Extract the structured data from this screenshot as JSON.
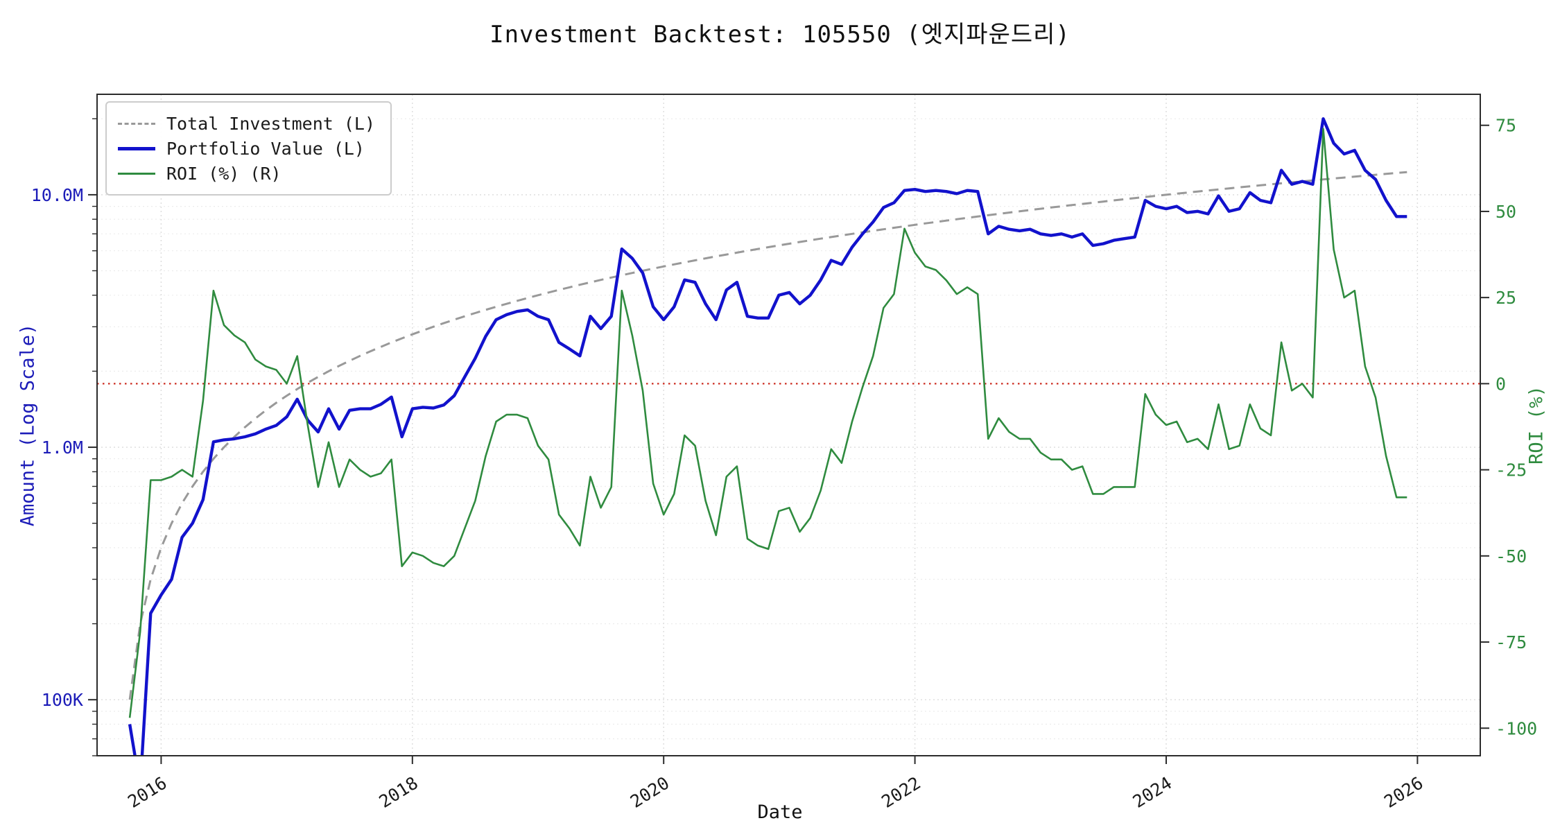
{
  "colors": {
    "investment": "#999999",
    "portfolio": "#1212cc",
    "roi": "#2f8b3f",
    "zero_line": "#cc2a1e",
    "left_axis_text": "#1c1cb8",
    "right_axis_text": "#2f8b3f",
    "spine": "#2b2b2b",
    "grid_major": "#dcdcdc",
    "grid_minor": "#ececec",
    "background": "#ffffff"
  },
  "legend": {
    "items": [
      {
        "label": "Total Investment (L)",
        "style": "dashed"
      },
      {
        "label": "Portfolio Value (L)",
        "style": "solid-thick"
      },
      {
        "label": "ROI (%) (R)",
        "style": "solid"
      }
    ]
  },
  "chart_data": {
    "type": "line",
    "title": "Investment Backtest: 105550 (엣지파운드리)",
    "xlabel": "Date",
    "ylabel_left": "Amount (Log Scale)",
    "ylabel_right": "ROI (%)",
    "legend_position": "upper-left",
    "grid": true,
    "x_range": [
      2015.49,
      2026.5
    ],
    "x_ticks": {
      "values": [
        2016,
        2018,
        2020,
        2022,
        2024,
        2026
      ],
      "labels": [
        "2016",
        "2018",
        "2020",
        "2022",
        "2024",
        "2026"
      ]
    },
    "y_left": {
      "scale": "log",
      "unit": "amount",
      "range": [
        0.06,
        25
      ],
      "tick_values": [
        0.1,
        1,
        10
      ],
      "tick_labels": [
        "100K",
        "1.0M",
        "10.0M"
      ],
      "minor_grid": [
        0.06,
        0.07,
        0.08,
        0.09,
        0.2,
        0.3,
        0.4,
        0.5,
        0.6,
        0.7,
        0.8,
        0.9,
        2,
        3,
        4,
        5,
        6,
        7,
        8,
        9,
        20
      ]
    },
    "y_right": {
      "scale": "linear",
      "unit": "%",
      "range": [
        -108,
        84
      ],
      "tick_values": [
        -100,
        -75,
        -50,
        -25,
        0,
        25,
        50,
        75
      ],
      "tick_labels": [
        "-100",
        "-75",
        "-50",
        "-25",
        "0",
        "25",
        "50",
        "75"
      ],
      "zero_line": 0
    },
    "months": [
      "2015-10",
      "2015-11",
      "2015-12",
      "2016-01",
      "2016-02",
      "2016-03",
      "2016-04",
      "2016-05",
      "2016-06",
      "2016-07",
      "2016-08",
      "2016-09",
      "2016-10",
      "2016-11",
      "2016-12",
      "2017-01",
      "2017-02",
      "2017-03",
      "2017-04",
      "2017-05",
      "2017-06",
      "2017-07",
      "2017-08",
      "2017-09",
      "2017-10",
      "2017-11",
      "2017-12",
      "2018-01",
      "2018-02",
      "2018-03",
      "2018-04",
      "2018-05",
      "2018-06",
      "2018-07",
      "2018-08",
      "2018-09",
      "2018-10",
      "2018-11",
      "2018-12",
      "2019-01",
      "2019-02",
      "2019-03",
      "2019-04",
      "2019-05",
      "2019-06",
      "2019-07",
      "2019-08",
      "2019-09",
      "2019-10",
      "2019-11",
      "2019-12",
      "2020-01",
      "2020-02",
      "2020-03",
      "2020-04",
      "2020-05",
      "2020-06",
      "2020-07",
      "2020-08",
      "2020-09",
      "2020-10",
      "2020-11",
      "2020-12",
      "2021-01",
      "2021-02",
      "2021-03",
      "2021-04",
      "2021-05",
      "2021-06",
      "2021-07",
      "2021-08",
      "2021-09",
      "2021-10",
      "2021-11",
      "2021-12",
      "2022-01",
      "2022-02",
      "2022-03",
      "2022-04",
      "2022-05",
      "2022-06",
      "2022-07",
      "2022-08",
      "2022-09",
      "2022-10",
      "2022-11",
      "2022-12",
      "2023-01",
      "2023-02",
      "2023-03",
      "2023-04",
      "2023-05",
      "2023-06",
      "2023-07",
      "2023-08",
      "2023-09",
      "2023-10",
      "2023-11",
      "2023-12",
      "2024-01",
      "2024-02",
      "2024-03",
      "2024-04",
      "2024-05",
      "2024-06",
      "2024-07",
      "2024-08",
      "2024-09",
      "2024-10",
      "2024-11",
      "2024-12",
      "2025-01",
      "2025-02",
      "2025-03",
      "2025-04",
      "2025-05",
      "2025-06",
      "2025-07",
      "2025-08",
      "2025-09",
      "2025-10",
      "2025-11",
      "2025-12"
    ],
    "series": [
      {
        "name": "Total Investment (L)",
        "axis": "left",
        "style": "dashed",
        "color": "#999999",
        "unit": "millions",
        "values": [
          0.1,
          0.2,
          0.3,
          0.4,
          0.5,
          0.6,
          0.7,
          0.8,
          0.9,
          1.0,
          1.1,
          1.2,
          1.3,
          1.4,
          1.5,
          1.6,
          1.7,
          1.8,
          1.9,
          2.0,
          2.1,
          2.2,
          2.3,
          2.4,
          2.5,
          2.6,
          2.7,
          2.8,
          2.9,
          3.0,
          3.1,
          3.2,
          3.3,
          3.4,
          3.5,
          3.6,
          3.7,
          3.8,
          3.9,
          4.0,
          4.1,
          4.2,
          4.3,
          4.4,
          4.5,
          4.6,
          4.7,
          4.8,
          4.9,
          5.0,
          5.1,
          5.2,
          5.3,
          5.4,
          5.5,
          5.6,
          5.7,
          5.8,
          5.9,
          6.0,
          6.1,
          6.2,
          6.3,
          6.4,
          6.5,
          6.6,
          6.7,
          6.8,
          6.9,
          7.0,
          7.1,
          7.2,
          7.3,
          7.4,
          7.5,
          7.6,
          7.7,
          7.8,
          7.9,
          8.0,
          8.1,
          8.2,
          8.3,
          8.4,
          8.5,
          8.6,
          8.7,
          8.8,
          8.9,
          9.0,
          9.1,
          9.2,
          9.3,
          9.4,
          9.5,
          9.6,
          9.7,
          9.8,
          9.9,
          10.0,
          10.1,
          10.2,
          10.3,
          10.4,
          10.5,
          10.6,
          10.7,
          10.8,
          10.9,
          11.0,
          11.1,
          11.2,
          11.3,
          11.4,
          11.5,
          11.6,
          11.7,
          11.8,
          11.9,
          12.0,
          12.1,
          12.2,
          12.3
        ]
      },
      {
        "name": "Portfolio Value (L)",
        "axis": "left",
        "style": "solid",
        "color": "#1212cc",
        "unit": "millions",
        "values": [
          0.08,
          0.045,
          0.22,
          0.26,
          0.3,
          0.44,
          0.5,
          0.62,
          1.05,
          1.07,
          1.08,
          1.1,
          1.13,
          1.18,
          1.22,
          1.32,
          1.55,
          1.28,
          1.15,
          1.42,
          1.18,
          1.4,
          1.42,
          1.42,
          1.48,
          1.58,
          1.1,
          1.42,
          1.44,
          1.43,
          1.47,
          1.6,
          1.9,
          2.25,
          2.75,
          3.2,
          3.35,
          3.45,
          3.5,
          3.3,
          3.2,
          2.6,
          2.45,
          2.3,
          3.3,
          2.95,
          3.3,
          6.1,
          5.6,
          4.9,
          3.6,
          3.2,
          3.6,
          4.6,
          4.5,
          3.7,
          3.2,
          4.2,
          4.5,
          3.3,
          3.25,
          3.25,
          4.0,
          4.1,
          3.7,
          4.0,
          4.6,
          5.5,
          5.3,
          6.2,
          7.0,
          7.8,
          8.9,
          9.3,
          10.4,
          10.5,
          10.3,
          10.4,
          10.3,
          10.1,
          10.4,
          10.3,
          7.0,
          7.5,
          7.3,
          7.2,
          7.3,
          7.0,
          6.9,
          7.0,
          6.8,
          7.0,
          6.3,
          6.4,
          6.6,
          6.7,
          6.8,
          9.5,
          9.0,
          8.8,
          9.0,
          8.5,
          8.6,
          8.4,
          9.9,
          8.6,
          8.8,
          10.2,
          9.5,
          9.3,
          12.5,
          11.0,
          11.3,
          11.0,
          20.0,
          16.0,
          14.5,
          15.0,
          12.5,
          11.5,
          9.5,
          8.2,
          8.2
        ]
      },
      {
        "name": "ROI (%) (R)",
        "axis": "right",
        "style": "solid",
        "color": "#2f8b3f",
        "unit": "%",
        "values": [
          -97,
          -72,
          -28,
          -28,
          -27,
          -25,
          -27,
          -5,
          27,
          17,
          14,
          12,
          7,
          5,
          4,
          0,
          8,
          -12,
          -30,
          -17,
          -30,
          -22,
          -25,
          -27,
          -26,
          -22,
          -53,
          -49,
          -50,
          -52,
          -53,
          -50,
          -42,
          -34,
          -21,
          -11,
          -9,
          -9,
          -10,
          -18,
          -22,
          -38,
          -42,
          -47,
          -27,
          -36,
          -30,
          27,
          14,
          -2,
          -29,
          -38,
          -32,
          -15,
          -18,
          -34,
          -44,
          -27,
          -24,
          -45,
          -47,
          -48,
          -37,
          -36,
          -43,
          -39,
          -31,
          -19,
          -23,
          -11,
          -1,
          8,
          22,
          26,
          45,
          38,
          34,
          33,
          30,
          26,
          28,
          26,
          -16,
          -10,
          -14,
          -16,
          -16,
          -20,
          -22,
          -22,
          -25,
          -24,
          -32,
          -32,
          -30,
          -30,
          -30,
          -3,
          -9,
          -12,
          -11,
          -17,
          -16,
          -19,
          -6,
          -19,
          -18,
          -6,
          -13,
          -15,
          12,
          -2,
          0,
          -4,
          74,
          39,
          25,
          27,
          5,
          -4,
          -21,
          -33,
          -33
        ]
      }
    ]
  }
}
